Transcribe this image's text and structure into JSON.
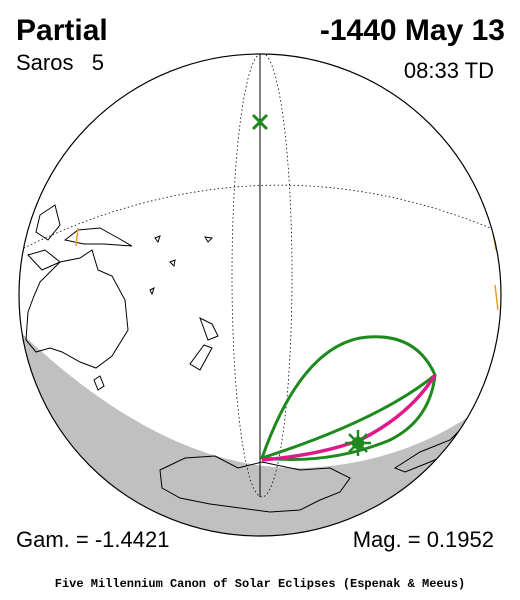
{
  "header": {
    "type": "Partial",
    "date": "-1440 May 13",
    "saros": "Saros   5",
    "time": "08:33 TD"
  },
  "footer": {
    "gamma": "Gam. = -1.4421",
    "magnitude": "Mag. = 0.1952",
    "credit": "Five Millennium Canon of Solar Eclipses (Espenak & Meeus)"
  }
}
